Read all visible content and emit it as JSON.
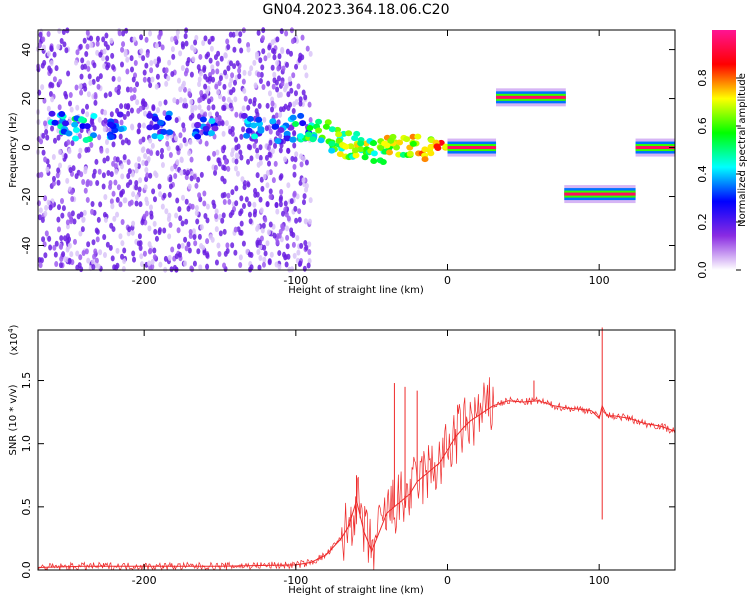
{
  "title": "GN04.2023.364.18.06.C20",
  "colors": {
    "snr_line": "#ee2a2a",
    "scatter_main": "#8a2be2"
  },
  "chart_data": [
    {
      "type": "heatmap",
      "xlabel": "Height of straight line (km)",
      "ylabel": "Frequency (Hz)",
      "xlim": [
        -270,
        150
      ],
      "ylim": [
        -50,
        48
      ],
      "xticks": [
        -200,
        -100,
        0,
        100
      ],
      "yticks": [
        40,
        20,
        0,
        -20,
        -40
      ],
      "colorbar": {
        "label": "Normalized spectral amplitude",
        "range": [
          0,
          1
        ],
        "ticks": [
          "0.0",
          "0.2",
          "0.4",
          "0.6",
          "0.8"
        ],
        "tick_values": [
          0,
          0.2,
          0.4,
          0.6,
          0.8
        ],
        "colormap": [
          "#ffffff",
          "#8a2be2",
          "#0000ff",
          "#00ffff",
          "#00ff00",
          "#ffff00",
          "#ff0000",
          "#ff1493"
        ]
      },
      "ridge": [
        {
          "x": -255,
          "y": 9,
          "a": 0.35
        },
        {
          "x": -240,
          "y": 8,
          "a": 0.4
        },
        {
          "x": -220,
          "y": 9,
          "a": 0.3
        },
        {
          "x": -190,
          "y": 9,
          "a": 0.3
        },
        {
          "x": -160,
          "y": 8,
          "a": 0.3
        },
        {
          "x": -130,
          "y": 8,
          "a": 0.3
        },
        {
          "x": -110,
          "y": 7,
          "a": 0.3
        },
        {
          "x": -95,
          "y": 8,
          "a": 0.4
        },
        {
          "x": -85,
          "y": 6,
          "a": 0.5
        },
        {
          "x": -75,
          "y": 3,
          "a": 0.55
        },
        {
          "x": -65,
          "y": 1,
          "a": 0.6
        },
        {
          "x": -55,
          "y": 1,
          "a": 0.6
        },
        {
          "x": -45,
          "y": -2,
          "a": 0.55
        },
        {
          "x": -35,
          "y": 1,
          "a": 0.65
        },
        {
          "x": -20,
          "y": 1,
          "a": 0.7
        },
        {
          "x": -8,
          "y": 0,
          "a": 0.75
        }
      ],
      "bands": [
        {
          "x0": 0,
          "x1": 32,
          "y": 0,
          "a": 0.95
        },
        {
          "x0": 32,
          "x1": 78,
          "y": 20.5,
          "a": 0.95
        },
        {
          "x0": 77,
          "x1": 124,
          "y": -19,
          "a": 0.95
        },
        {
          "x0": 124,
          "x1": 150,
          "y": 0,
          "a": 0.95
        }
      ]
    },
    {
      "type": "line",
      "xlabel": "Height of straight line (km)",
      "ylabel": "SNR (10 * v/v)",
      "multiplier": "(x10",
      "multiplier_exp": "4",
      "multiplier_close": ")",
      "xlim": [
        -270,
        150
      ],
      "ylim": [
        0,
        1.9
      ],
      "xticks": [
        -200,
        -100,
        0,
        100
      ],
      "yticks": [
        "0.0",
        "0.5",
        "1.0",
        "1.5"
      ],
      "ytick_values": [
        0,
        0.5,
        1.0,
        1.5
      ],
      "series": [
        {
          "x": [
            -270,
            -240,
            -200,
            -150,
            -100,
            -90,
            -80,
            -70,
            -65,
            -60,
            -55,
            -50,
            -45,
            -40,
            -35,
            -30,
            -25,
            -20,
            -15,
            -10,
            -5,
            0,
            5,
            10,
            15,
            20,
            25,
            30,
            35,
            40,
            50,
            60,
            70,
            80,
            90,
            95,
            100,
            102,
            105,
            110,
            120,
            130,
            140,
            150
          ],
          "y": [
            0.02,
            0.03,
            0.03,
            0.03,
            0.04,
            0.06,
            0.12,
            0.25,
            0.35,
            0.55,
            0.3,
            0.15,
            0.3,
            0.45,
            0.5,
            0.55,
            0.6,
            0.7,
            0.75,
            0.8,
            0.85,
            0.95,
            1.05,
            1.12,
            1.18,
            1.22,
            1.26,
            1.3,
            1.32,
            1.34,
            1.33,
            1.34,
            1.3,
            1.28,
            1.27,
            1.26,
            1.2,
            1.3,
            1.22,
            1.22,
            1.2,
            1.16,
            1.14,
            1.1
          ],
          "spikes": [
            {
              "x": -60,
              "y": 0.75
            },
            {
              "x": -35,
              "y": 1.48
            },
            {
              "x": -28,
              "y": 1.45
            },
            {
              "x": -20,
              "y": 1.42
            },
            {
              "x": 57,
              "y": 1.5
            },
            {
              "x": 102,
              "y": 1.92
            },
            {
              "x": 102,
              "y": 0.4
            }
          ]
        }
      ]
    }
  ]
}
